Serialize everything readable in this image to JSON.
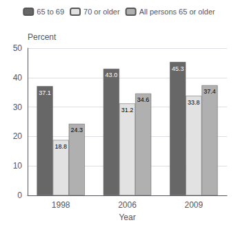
{
  "chart_data": {
    "type": "bar",
    "categories": [
      "1998",
      "2006",
      "2009"
    ],
    "series": [
      {
        "name": "65 to 69",
        "color": "#676767",
        "values": [
          37.1,
          43.0,
          45.3
        ],
        "value_labels": [
          "37.1",
          "43.0",
          "45.3"
        ]
      },
      {
        "name": "70 or older",
        "color": "#e2e2e2",
        "values": [
          18.8,
          31.2,
          33.8
        ],
        "value_labels": [
          "18.8",
          "31.2",
          "33.8"
        ]
      },
      {
        "name": "All persons 65 or older",
        "color": "#b0b0b0",
        "values": [
          24.3,
          34.6,
          37.4
        ],
        "value_labels": [
          "24.3",
          "34.6",
          "37.4"
        ]
      }
    ],
    "xlabel": "Year",
    "ylabel": "Percent",
    "ylim": [
      0,
      50
    ],
    "yticks": [
      0,
      10,
      20,
      30,
      40,
      50
    ],
    "grid": true,
    "legend": "top",
    "data_labels": true
  }
}
